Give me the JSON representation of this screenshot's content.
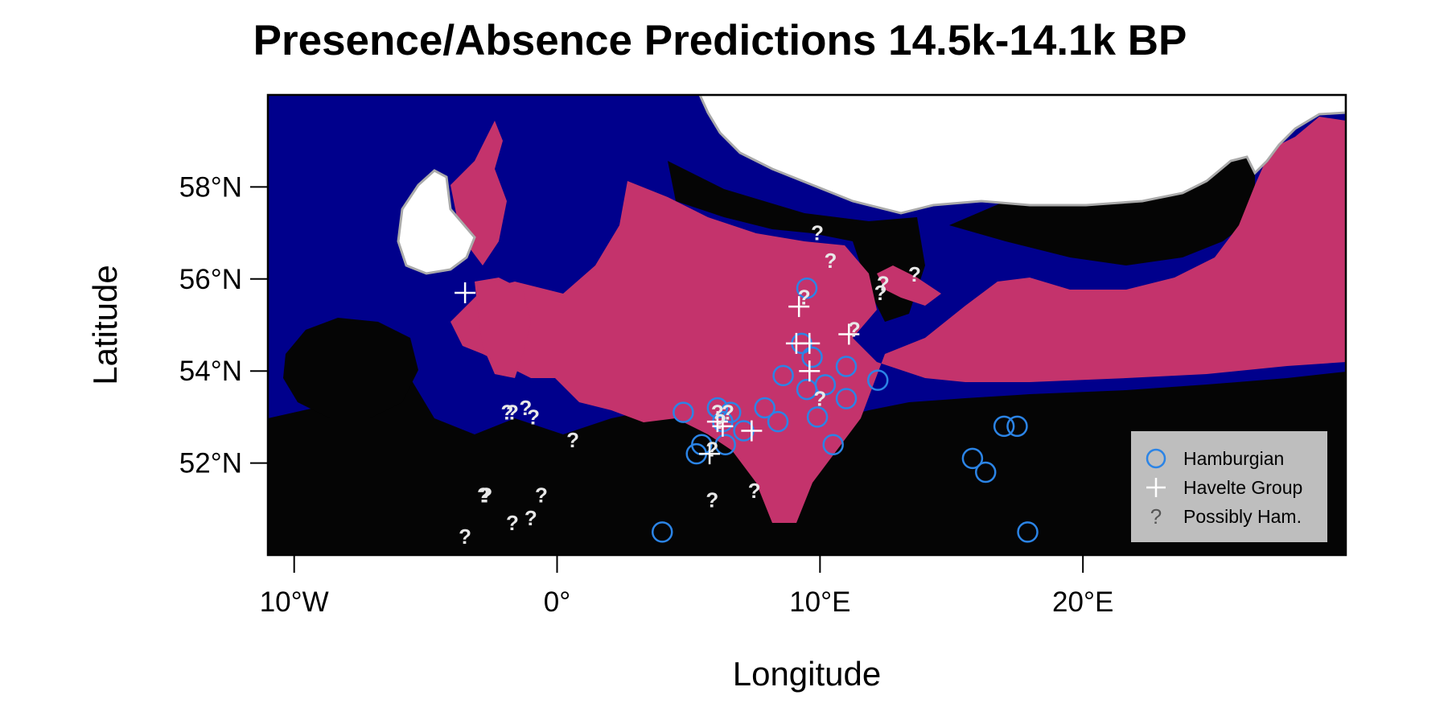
{
  "chart_data": {
    "type": "scatter",
    "title": "Presence/Absence Predictions 14.5k-14.1k BP",
    "xlabel": "Longitude",
    "ylabel": "Latitude",
    "xlim": [
      -11,
      30
    ],
    "ylim": [
      50,
      60
    ],
    "x_ticks": [
      {
        "value": -10,
        "label": "10°W"
      },
      {
        "value": 0,
        "label": "0°"
      },
      {
        "value": 10,
        "label": "10°E"
      },
      {
        "value": 20,
        "label": "20°E"
      }
    ],
    "y_ticks": [
      {
        "value": 52,
        "label": "52°N"
      },
      {
        "value": 54,
        "label": "54°N"
      },
      {
        "value": 56,
        "label": "56°N"
      },
      {
        "value": 58,
        "label": "58°N"
      }
    ],
    "legend": {
      "position": "bottom-right",
      "entries": [
        {
          "key": "hamburgian",
          "label": "Hamburgian",
          "symbol": "○",
          "color": "#2b84e6"
        },
        {
          "key": "havelte",
          "label": "Havelte Group",
          "symbol": "+",
          "color": "#ffffff"
        },
        {
          "key": "possibly",
          "label": "Possibly Ham.",
          "symbol": "?",
          "color": "#555555"
        }
      ]
    },
    "colors": {
      "sea": "#00008c",
      "predicted_presence": "#c4336c",
      "predicted_absence": "#050505",
      "ice": "#ffffff",
      "ice_edge": "#aaaaaa",
      "legend_bg": "#bebebe"
    },
    "series": [
      {
        "name": "Hamburgian",
        "symbol": "circle",
        "points": [
          [
            9.5,
            55.8
          ],
          [
            9.3,
            54.6
          ],
          [
            9.7,
            54.3
          ],
          [
            8.6,
            53.9
          ],
          [
            9.5,
            53.6
          ],
          [
            10.2,
            53.7
          ],
          [
            11.0,
            53.4
          ],
          [
            11.0,
            54.1
          ],
          [
            12.2,
            53.8
          ],
          [
            4.8,
            53.1
          ],
          [
            6.1,
            53.2
          ],
          [
            6.6,
            53.1
          ],
          [
            6.3,
            52.9
          ],
          [
            7.1,
            52.7
          ],
          [
            7.9,
            53.2
          ],
          [
            8.4,
            52.9
          ],
          [
            9.9,
            53.0
          ],
          [
            10.5,
            52.4
          ],
          [
            5.5,
            52.4
          ],
          [
            6.4,
            52.4
          ],
          [
            5.3,
            52.2
          ],
          [
            4.0,
            50.5
          ],
          [
            15.8,
            52.1
          ],
          [
            16.3,
            51.8
          ],
          [
            17.0,
            52.8
          ],
          [
            17.5,
            52.8
          ],
          [
            17.9,
            50.5
          ]
        ]
      },
      {
        "name": "Havelte Group",
        "symbol": "plus",
        "points": [
          [
            -3.5,
            55.7
          ],
          [
            9.2,
            55.4
          ],
          [
            9.1,
            54.6
          ],
          [
            9.6,
            54.6
          ],
          [
            9.6,
            54.0
          ],
          [
            11.1,
            54.8
          ],
          [
            6.1,
            52.9
          ],
          [
            6.3,
            52.8
          ],
          [
            7.4,
            52.7
          ],
          [
            5.8,
            52.2
          ]
        ]
      },
      {
        "name": "Possibly Ham.",
        "symbol": "question",
        "points": [
          [
            9.9,
            57.0
          ],
          [
            10.4,
            56.4
          ],
          [
            9.4,
            55.6
          ],
          [
            12.3,
            55.7
          ],
          [
            12.4,
            55.9
          ],
          [
            13.6,
            56.1
          ],
          [
            11.3,
            54.9
          ],
          [
            10.0,
            53.4
          ],
          [
            6.1,
            53.1
          ],
          [
            6.5,
            53.1
          ],
          [
            6.2,
            52.9
          ],
          [
            -1.7,
            53.1
          ],
          [
            -1.9,
            53.1
          ],
          [
            -1.2,
            53.2
          ],
          [
            -0.9,
            53.0
          ],
          [
            0.6,
            52.5
          ],
          [
            5.9,
            52.3
          ],
          [
            -2.8,
            51.3
          ],
          [
            -2.7,
            51.3
          ],
          [
            -0.6,
            51.3
          ],
          [
            -1.7,
            50.7
          ],
          [
            -1.0,
            50.8
          ],
          [
            -3.5,
            50.4
          ],
          [
            5.9,
            51.2
          ],
          [
            7.5,
            51.4
          ]
        ]
      }
    ]
  }
}
